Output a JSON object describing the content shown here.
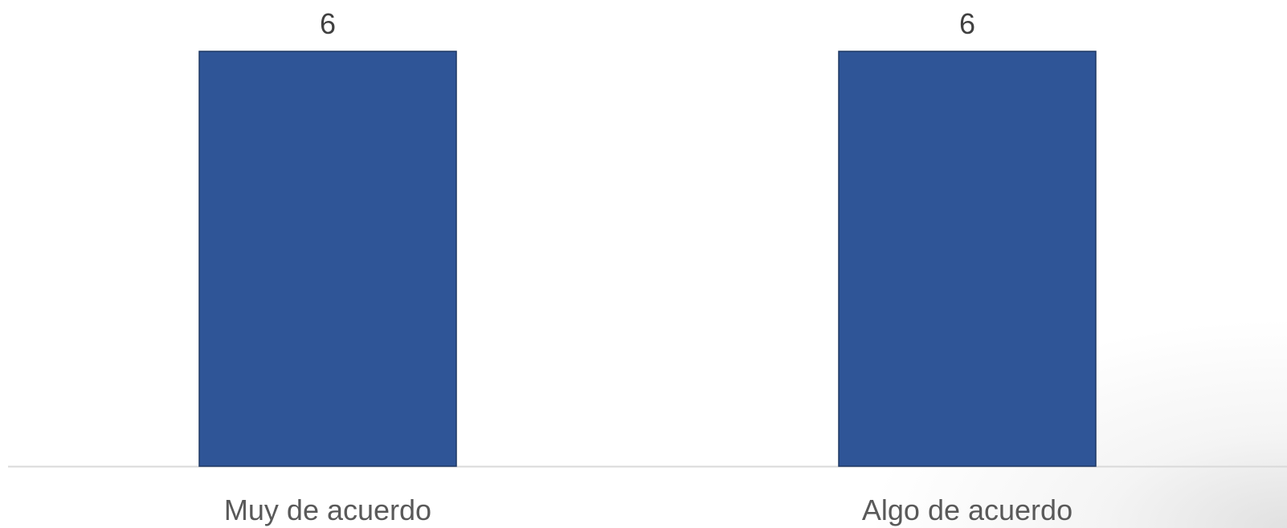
{
  "chart_data": {
    "type": "bar",
    "categories": [
      "Muy de acuerdo",
      "Algo de acuerdo"
    ],
    "values": [
      6,
      6
    ],
    "data_labels": [
      "6",
      "6"
    ],
    "title": "",
    "xlabel": "",
    "ylabel": "",
    "ylim": [
      0,
      6
    ],
    "grid": false,
    "legend": "none",
    "bar_color": "#2F5597",
    "bar_border_color": "#1F3864",
    "axis_color": "#D9D9D9"
  }
}
